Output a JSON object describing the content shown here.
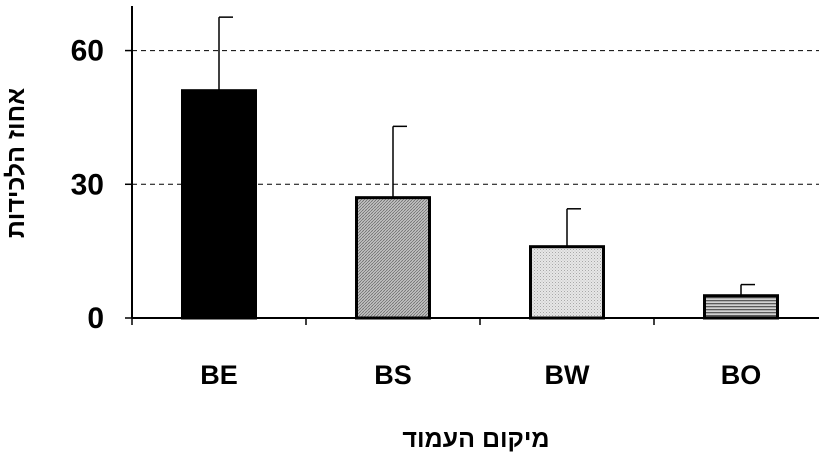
{
  "chart_data": {
    "type": "bar",
    "categories": [
      "BE",
      "BS",
      "BW",
      "BO"
    ],
    "values": [
      51,
      27,
      16,
      5
    ],
    "errors": [
      16.5,
      16,
      8.5,
      2.5
    ],
    "title": "",
    "xlabel": "מיקום העמוד",
    "ylabel": "אחוז הלכידות",
    "ylim": [
      0,
      70
    ],
    "yticks": [
      "0",
      "30",
      "60"
    ],
    "ytick_values": [
      0,
      30,
      60
    ],
    "grid": "dashed horizontal at 30 and 60",
    "legend": "none",
    "bar_fills": [
      "solid-black",
      "dense-hatch",
      "light-dots",
      "horizontal-stripes"
    ]
  }
}
